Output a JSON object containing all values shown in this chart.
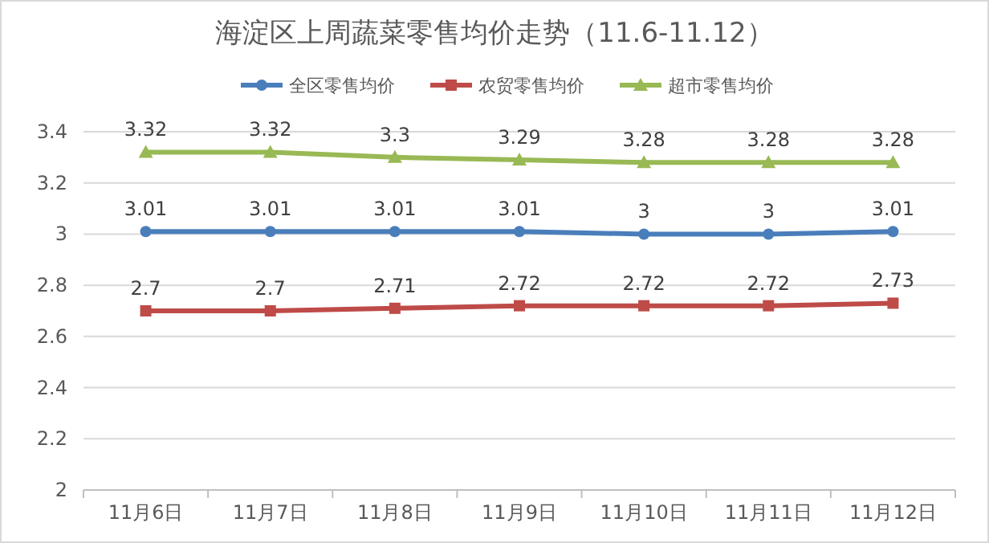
{
  "chart_data": {
    "type": "line",
    "title": "海淀区上周蔬菜零售均价走势（11.6-11.12）",
    "categories": [
      "11月6日",
      "11月7日",
      "11月8日",
      "11月9日",
      "11月10日",
      "11月11日",
      "11月12日"
    ],
    "series": [
      {
        "name": "全区零售均价",
        "color": "#4a7ebb",
        "marker": "circle",
        "values": [
          3.01,
          3.01,
          3.01,
          3.01,
          3,
          3,
          3.01
        ]
      },
      {
        "name": "农贸零售均价",
        "color": "#be4b48",
        "marker": "square",
        "values": [
          2.7,
          2.7,
          2.71,
          2.72,
          2.72,
          2.72,
          2.73
        ]
      },
      {
        "name": "超市零售均价",
        "color": "#98b954",
        "marker": "triangle",
        "values": [
          3.32,
          3.32,
          3.3,
          3.29,
          3.28,
          3.28,
          3.28
        ]
      }
    ],
    "ylim": [
      2,
      3.4
    ],
    "yticks": [
      2,
      2.2,
      2.4,
      2.6,
      2.8,
      3,
      3.2,
      3.4
    ],
    "grid": "y",
    "legend": "top",
    "data_labels": true,
    "line_style": "solid"
  }
}
